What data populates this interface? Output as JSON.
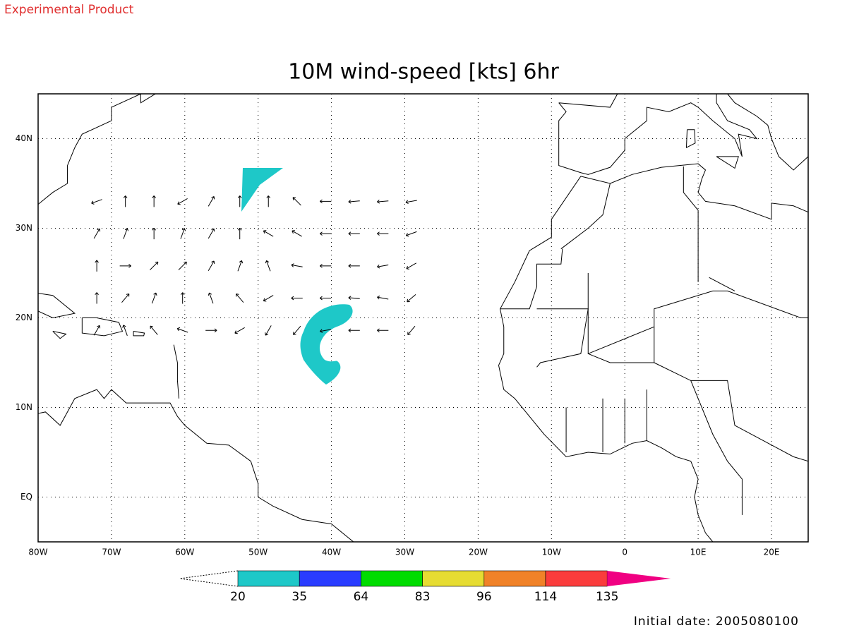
{
  "header": {
    "note": "Experimental Product",
    "title": "10M wind-speed [kts] 6hr"
  },
  "map": {
    "lon_labels": [
      "80W",
      "70W",
      "60W",
      "50W",
      "40W",
      "30W",
      "20W",
      "10W",
      "0",
      "10E",
      "20E"
    ],
    "lat_labels": [
      "40N",
      "30N",
      "20N",
      "10N",
      "EQ"
    ],
    "grid": true,
    "shade_color": "#1ec8c8"
  },
  "colorbar": {
    "levels": [
      20,
      35,
      64,
      83,
      96,
      114,
      135
    ],
    "colors": [
      "#1ec8c8",
      "#2a3cff",
      "#00dc00",
      "#e6dc32",
      "#f08228",
      "#fa3c3c",
      "#f00082"
    ]
  },
  "footer": {
    "initial_date": "Initial date: 2005080100"
  }
}
